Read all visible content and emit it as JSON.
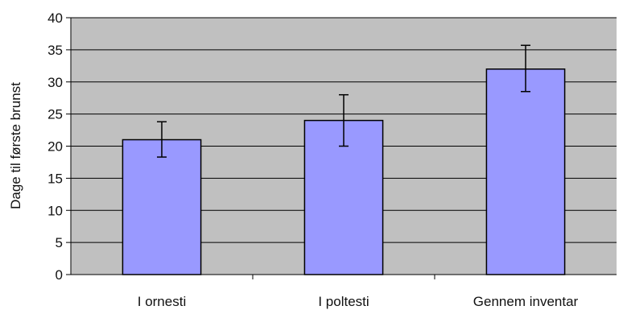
{
  "chart_data": {
    "type": "bar",
    "title": "",
    "xlabel": "",
    "ylabel": "Dage til første brunst",
    "categories": [
      "I ornesti",
      "I poltesti",
      "Gennem inventar"
    ],
    "values": [
      21,
      24,
      32
    ],
    "error_low": [
      18.3,
      20,
      28.5
    ],
    "error_high": [
      23.8,
      28,
      35.7
    ],
    "ylim": [
      0,
      40
    ],
    "yticks": [
      0,
      5,
      10,
      15,
      20,
      25,
      30,
      35,
      40
    ],
    "grid": true,
    "legend": "none",
    "colors": {
      "bar_fill": "#9999ff",
      "bar_stroke": "#000000",
      "plot_background": "#c0c0c0",
      "gridline": "#000000"
    }
  }
}
